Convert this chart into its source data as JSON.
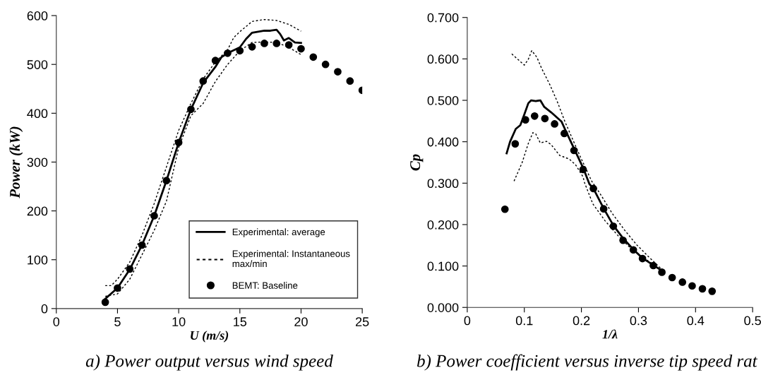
{
  "chart_data": [
    {
      "type": "line",
      "xlabel": "U (m/s)",
      "ylabel": "Power (kW)",
      "xlim": [
        0,
        25
      ],
      "xticks": [
        0,
        5,
        10,
        15,
        20,
        25
      ],
      "ylim": [
        0,
        600
      ],
      "yticks": [
        0,
        100,
        200,
        300,
        400,
        500,
        600
      ],
      "grid": false,
      "legend": "bottom right",
      "annotations": [
        "a) Power output versus wind speed"
      ],
      "series": [
        {
          "name": "Experimental: average",
          "line_style": "solid",
          "color": "#000000",
          "x": [
            4,
            5,
            6,
            7,
            8,
            9,
            10,
            11,
            12,
            13,
            13.5,
            14,
            15,
            15.5,
            16,
            17,
            17.5,
            18,
            18.3,
            18.6,
            19,
            19.5,
            20
          ],
          "values": [
            20,
            42,
            80,
            130,
            190,
            262,
            340,
            408,
            462,
            495,
            515,
            523,
            535,
            552,
            565,
            569,
            569,
            571,
            562,
            549,
            554,
            545,
            544
          ]
        },
        {
          "name": "Experimental: Instantaneous\nmax/min",
          "line_style": "dotted",
          "color": "#000000",
          "x": [
            4,
            4.5,
            5,
            6,
            7,
            8,
            9,
            10,
            11,
            12,
            13,
            14,
            14.5,
            15,
            16,
            17,
            18,
            19,
            20
          ],
          "values": [
            47,
            47,
            60,
            95,
            150,
            215,
            290,
            365,
            420,
            470,
            505,
            530,
            555,
            567,
            588,
            592,
            590,
            582,
            568
          ]
        },
        {
          "line_style": "dotted",
          "color": "#000000",
          "x": [
            4,
            5,
            6,
            7,
            8,
            9,
            10,
            11,
            12,
            13,
            14,
            15,
            16,
            17,
            18,
            19,
            20
          ],
          "values": [
            25,
            30,
            60,
            110,
            160,
            220,
            330,
            395,
            420,
            465,
            500,
            528,
            545,
            546,
            545,
            535,
            520
          ]
        },
        {
          "name": "BEMT: Baseline",
          "type": "scatter",
          "marker": "circle",
          "color": "#000000",
          "x": [
            4,
            5,
            6,
            7,
            8,
            9,
            10,
            11,
            12,
            13,
            14,
            15,
            16,
            17,
            18,
            19,
            20,
            21,
            22,
            23,
            24,
            25
          ],
          "values": [
            13,
            42,
            81,
            130,
            190,
            262,
            340,
            408,
            466,
            508,
            523,
            528,
            536,
            543,
            543,
            540,
            532,
            515,
            500,
            485,
            466,
            447
          ]
        }
      ]
    },
    {
      "type": "line",
      "xlabel": "1/λ",
      "ylabel": "Cp",
      "xlim": [
        0,
        0.5
      ],
      "xticks": [
        0,
        0.1,
        0.2,
        0.3,
        0.4,
        0.5
      ],
      "ylim": [
        0,
        0.7
      ],
      "yticks": [
        {
          "value": 0,
          "label": "0.000"
        },
        {
          "value": 0.1,
          "label": "0.100"
        },
        {
          "value": 0.2,
          "label": "0.200"
        },
        {
          "value": 0.3,
          "label": "0.300"
        },
        {
          "value": 0.4,
          "label": "0.400"
        },
        {
          "value": 0.5,
          "label": "0.500"
        },
        {
          "value": 0.6,
          "label": "0.600"
        },
        {
          "value": 0.7,
          "label": "0.700"
        }
      ],
      "grid": false,
      "annotations": [
        "b) Power coefficient versus inverse tip speed rat"
      ],
      "series": [
        {
          "line_style": "solid",
          "color": "#000000",
          "x": [
            0.069,
            0.075,
            0.085,
            0.093,
            0.1,
            0.107,
            0.112,
            0.12,
            0.128,
            0.135,
            0.147,
            0.165,
            0.173,
            0.187,
            0.203,
            0.214,
            0.221,
            0.239,
            0.256,
            0.273,
            0.291,
            0.307,
            0.326,
            0.344
          ],
          "values": [
            0.372,
            0.4,
            0.431,
            0.44,
            0.466,
            0.493,
            0.5,
            0.498,
            0.5,
            0.484,
            0.471,
            0.449,
            0.425,
            0.384,
            0.337,
            0.298,
            0.287,
            0.239,
            0.198,
            0.167,
            0.14,
            0.119,
            0.102,
            0.086
          ]
        },
        {
          "line_style": "dotted",
          "color": "#000000",
          "x": [
            0.078,
            0.1,
            0.107,
            0.113,
            0.122,
            0.13,
            0.145,
            0.158,
            0.171,
            0.184,
            0.199,
            0.218,
            0.233,
            0.254,
            0.276,
            0.297,
            0.318,
            0.34
          ],
          "values": [
            0.612,
            0.585,
            0.599,
            0.62,
            0.604,
            0.578,
            0.537,
            0.496,
            0.449,
            0.408,
            0.361,
            0.305,
            0.274,
            0.227,
            0.186,
            0.151,
            0.122,
            0.093
          ]
        },
        {
          "line_style": "dotted",
          "color": "#000000",
          "x": [
            0.082,
            0.096,
            0.107,
            0.115,
            0.12,
            0.128,
            0.139,
            0.147,
            0.162,
            0.179,
            0.19,
            0.203,
            0.205,
            0.22,
            0.241,
            0.263,
            0.284,
            0.306,
            0.34
          ],
          "values": [
            0.305,
            0.349,
            0.396,
            0.422,
            0.419,
            0.397,
            0.401,
            0.393,
            0.367,
            0.358,
            0.344,
            0.315,
            0.303,
            0.25,
            0.21,
            0.175,
            0.146,
            0.123,
            0.09
          ]
        },
        {
          "type": "scatter",
          "marker": "circle",
          "color": "#000000",
          "x": [
            0.066,
            0.084,
            0.102,
            0.118,
            0.136,
            0.153,
            0.17,
            0.187,
            0.203,
            0.221,
            0.239,
            0.256,
            0.273,
            0.291,
            0.307,
            0.326,
            0.341,
            0.359,
            0.377,
            0.394,
            0.412,
            0.429
          ],
          "values": [
            0.237,
            0.395,
            0.453,
            0.462,
            0.456,
            0.443,
            0.42,
            0.379,
            0.333,
            0.287,
            0.238,
            0.196,
            0.162,
            0.139,
            0.118,
            0.101,
            0.085,
            0.072,
            0.061,
            0.052,
            0.045,
            0.039
          ]
        }
      ]
    }
  ]
}
